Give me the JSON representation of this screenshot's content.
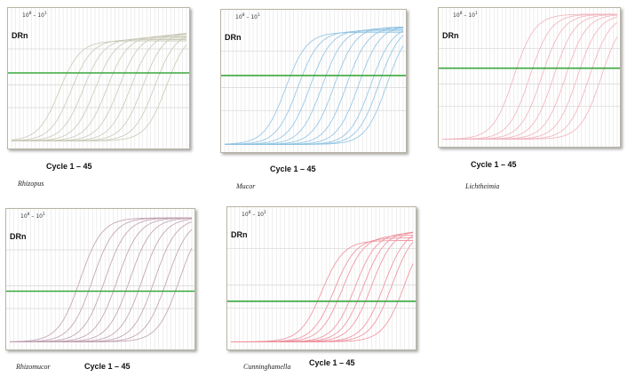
{
  "chart_data": [
    {
      "type": "line",
      "organism": "Rhizopus",
      "range_base": "10",
      "range_exp_start": "8",
      "range_exp_end": "1",
      "range_dash": "–",
      "ylabel": "DRn",
      "xlabel": "Cycle 1 – 45",
      "xlim": [
        1,
        45
      ],
      "color": "#c9c9b7",
      "threshold_color": "#39a83d",
      "series": [
        {
          "ct": 9,
          "top": 0.78
        },
        {
          "ct": 12,
          "top": 0.79
        },
        {
          "ct": 15,
          "top": 0.8
        },
        {
          "ct": 18,
          "top": 0.81
        },
        {
          "ct": 21,
          "top": 0.82
        },
        {
          "ct": 24,
          "top": 0.83
        },
        {
          "ct": 27,
          "top": 0.84
        },
        {
          "ct": 30,
          "top": 0.85
        },
        {
          "ct": 33,
          "top": 0.85
        },
        {
          "ct": 36,
          "top": 0.86
        }
      ]
    },
    {
      "type": "line",
      "organism": "Mucor",
      "range_base": "10",
      "range_exp_start": "8",
      "range_exp_end": "1",
      "range_dash": "–",
      "ylabel": "DRn",
      "xlabel": "Cycle 1 – 45",
      "xlim": [
        1,
        45
      ],
      "color": "#8ec2e2",
      "threshold_color": "#39a83d",
      "series": [
        {
          "ct": 12,
          "top": 0.86
        },
        {
          "ct": 15,
          "top": 0.87
        },
        {
          "ct": 18,
          "top": 0.88
        },
        {
          "ct": 21,
          "top": 0.89
        },
        {
          "ct": 24,
          "top": 0.9
        },
        {
          "ct": 27,
          "top": 0.9
        },
        {
          "ct": 30,
          "top": 0.91
        },
        {
          "ct": 33,
          "top": 0.91
        },
        {
          "ct": 35,
          "top": 0.92
        },
        {
          "ct": 37,
          "top": 0.92
        }
      ]
    },
    {
      "type": "line",
      "organism": "Lichtheimia",
      "range_base": "10",
      "range_exp_start": "8",
      "range_exp_end": "1",
      "range_dash": "–",
      "ylabel": "DRn",
      "xlabel": "Cycle 1 – 45",
      "xlim": [
        1,
        45
      ],
      "color": "#f1b3bd",
      "threshold_color": "#39a83d",
      "series": [
        {
          "ct": 15,
          "top": 0.98
        },
        {
          "ct": 19,
          "top": 0.98
        },
        {
          "ct": 22,
          "top": 0.98
        },
        {
          "ct": 25,
          "top": 0.98
        },
        {
          "ct": 28,
          "top": 0.98
        },
        {
          "ct": 31,
          "top": 0.98
        },
        {
          "ct": 34,
          "top": 0.98
        },
        {
          "ct": 37,
          "top": 0.98
        }
      ]
    },
    {
      "type": "line",
      "organism": "Rhizomucor",
      "range_base": "10",
      "range_exp_start": "8",
      "range_exp_end": "1",
      "range_dash": "–",
      "ylabel": "DRn",
      "xlabel": "Cycle 1 – 45",
      "xlim": [
        1,
        45
      ],
      "color": "#bf9eb0",
      "threshold_color": "#39a83d",
      "series": [
        {
          "ct": 14,
          "top": 0.96
        },
        {
          "ct": 17,
          "top": 0.96
        },
        {
          "ct": 20,
          "top": 0.96
        },
        {
          "ct": 23,
          "top": 0.96
        },
        {
          "ct": 26,
          "top": 0.96
        },
        {
          "ct": 29,
          "top": 0.96
        },
        {
          "ct": 32,
          "top": 0.96
        },
        {
          "ct": 35,
          "top": 0.96
        },
        {
          "ct": 38,
          "top": 0.96
        }
      ]
    },
    {
      "type": "line",
      "organism": "Cunninghamella",
      "range_base": "10",
      "range_exp_start": "8",
      "range_exp_end": "1",
      "range_dash": "–",
      "ylabel": "DRn",
      "xlabel": "Cycle 1 – 45",
      "xlim": [
        1,
        45
      ],
      "color": "#ee8f9c",
      "threshold_color": "#39a83d",
      "series": [
        {
          "ct": 19,
          "top": 0.78
        },
        {
          "ct": 22,
          "top": 0.8
        },
        {
          "ct": 24,
          "top": 0.82
        },
        {
          "ct": 27,
          "top": 0.84
        },
        {
          "ct": 29,
          "top": 0.85
        },
        {
          "ct": 31,
          "top": 0.86
        },
        {
          "ct": 34,
          "top": 0.87
        },
        {
          "ct": 36,
          "top": 0.88
        },
        {
          "ct": 39,
          "top": 0.88
        }
      ]
    }
  ]
}
